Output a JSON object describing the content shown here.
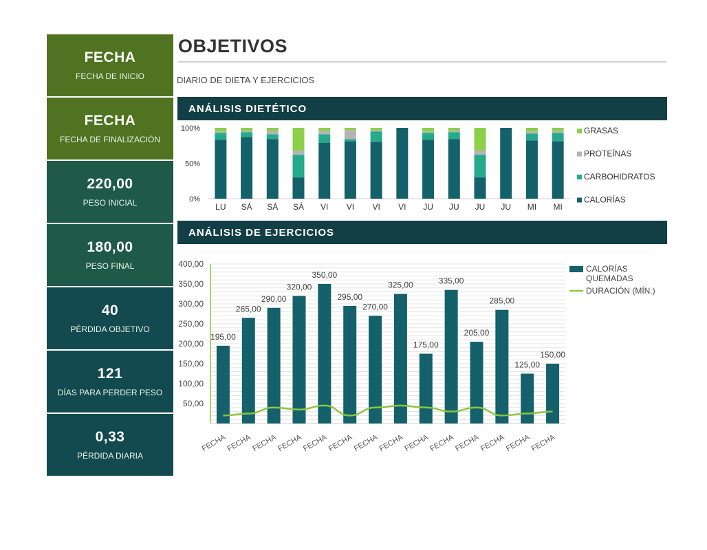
{
  "sidebar": {
    "cards": [
      {
        "value": "FECHA",
        "label": "FECHA DE INICIO"
      },
      {
        "value": "FECHA",
        "label": "FECHA DE FINALIZACIÓN"
      },
      {
        "value": "220,00",
        "label": "PESO INICIAL"
      },
      {
        "value": "180,00",
        "label": "PESO FINAL"
      },
      {
        "value": "40",
        "label": "PÉRDIDA OBJETIVO"
      },
      {
        "value": "121",
        "label": "DÍAS PARA PERDER PESO"
      },
      {
        "value": "0,33",
        "label": "PÉRDIDA DIARIA"
      }
    ]
  },
  "header": {
    "title": "OBJETIVOS",
    "subtitle": "DIARIO DE DIETA Y EJERCICIOS"
  },
  "sections": {
    "diet": "ANÁLISIS DIETÉTICO",
    "exercise": "ANÁLISIS DE EJERCICIOS"
  },
  "colors": {
    "olive": "#4f7320",
    "green": "#1e5a47",
    "teal": "#124a4f",
    "calorias": "#14606b",
    "carbohidratos": "#27a98c",
    "proteinas": "#b4b4b4",
    "grasas": "#8dcf49",
    "line": "#8cc63f"
  },
  "chart_data": [
    {
      "type": "bar",
      "stacked": true,
      "title": "ANÁLISIS DIETÉTICO",
      "categories": [
        "LU",
        "SÁ",
        "SÁ",
        "SÁ",
        "VI",
        "VI",
        "VI",
        "VI",
        "JU",
        "JU",
        "JU",
        "JU",
        "MI",
        "MI"
      ],
      "series": [
        {
          "name": "CALORÍAS",
          "values": [
            83,
            87,
            84,
            30,
            79,
            81,
            80,
            100,
            83,
            84,
            30,
            100,
            82,
            81
          ]
        },
        {
          "name": "CARBOHIDRATOS",
          "values": [
            10,
            7,
            7,
            32,
            12,
            3,
            15,
            0,
            10,
            10,
            32,
            0,
            10,
            12
          ]
        },
        {
          "name": "PROTEÍNAS",
          "values": [
            2,
            2,
            5,
            6,
            5,
            13,
            2,
            0,
            2,
            2,
            6,
            0,
            3,
            3
          ]
        },
        {
          "name": "GRASAS",
          "values": [
            5,
            4,
            4,
            32,
            4,
            3,
            3,
            0,
            5,
            4,
            32,
            0,
            5,
            4
          ]
        }
      ],
      "yticks": [
        "0%",
        "50%",
        "100%"
      ],
      "ylim": [
        0,
        100
      ],
      "legend_order": [
        "GRASAS",
        "PROTEÍNAS",
        "CARBOHIDRATOS",
        "CALORÍAS"
      ],
      "legend": "right"
    },
    {
      "type": "bar",
      "title": "ANÁLISIS DE EJERCICIOS",
      "categories": [
        "FECHA",
        "FECHA",
        "FECHA",
        "FECHA",
        "FECHA",
        "FECHA",
        "FECHA",
        "FECHA",
        "FECHA",
        "FECHA",
        "FECHA",
        "FECHA",
        "FECHA",
        "FECHA"
      ],
      "series": [
        {
          "name": "CALORÍAS QUEMADAS",
          "type": "bar",
          "values": [
            195,
            265,
            290,
            320,
            350,
            295,
            270,
            325,
            175,
            335,
            205,
            285,
            125,
            150
          ],
          "labels": [
            "195,00",
            "265,00",
            "290,00",
            "320,00",
            "350,00",
            "295,00",
            "270,00",
            "325,00",
            "175,00",
            "335,00",
            "205,00",
            "285,00",
            "125,00",
            "150,00"
          ]
        },
        {
          "name": "DURACIÓN (MÍN.)",
          "type": "line",
          "values": [
            20,
            25,
            40,
            35,
            45,
            20,
            40,
            45,
            40,
            30,
            40,
            20,
            25,
            30
          ]
        }
      ],
      "yticks": [
        "50,00",
        "100,00",
        "150,00",
        "200,00",
        "250,00",
        "300,00",
        "350,00",
        "400,00"
      ],
      "ylim": [
        0,
        400
      ],
      "legend": "right"
    }
  ]
}
